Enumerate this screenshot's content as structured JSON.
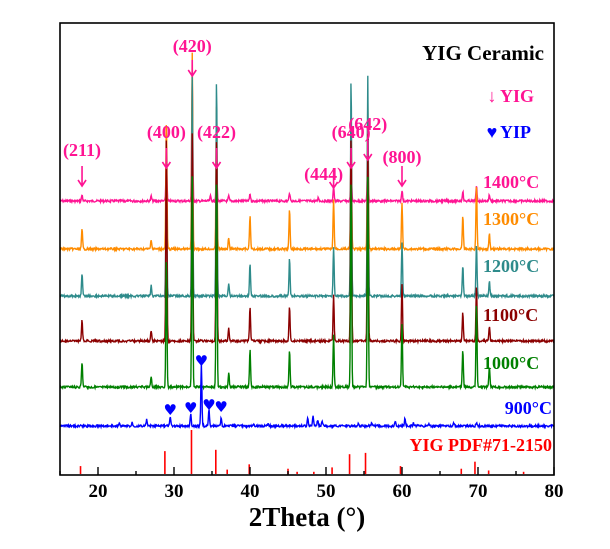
{
  "chart_data": {
    "type": "line",
    "title": "YIG Ceramic",
    "xlabel": "2Theta (°)",
    "ylabel": "",
    "xlim": [
      15,
      80
    ],
    "x_ticks": [
      "20",
      "30",
      "40",
      "50",
      "60",
      "70",
      "80"
    ],
    "x_tick_values": [
      20,
      30,
      40,
      50,
      60,
      70,
      80
    ],
    "grid": false,
    "legend_position": "top-right",
    "legend": [
      {
        "symbol": "↓",
        "label": "YIG",
        "color": "#ff1493"
      },
      {
        "symbol": "♥",
        "label": "YIP",
        "color": "#0000ff"
      }
    ],
    "peak_markers": [
      {
        "label": "(211)",
        "x": 17.9
      },
      {
        "label": "(400)",
        "x": 29.0
      },
      {
        "label": "(420)",
        "x": 32.4
      },
      {
        "label": "(422)",
        "x": 35.6
      },
      {
        "label": "(444)",
        "x": 51.0
      },
      {
        "label": "(640)",
        "x": 53.3
      },
      {
        "label": "(642)",
        "x": 55.5
      },
      {
        "label": "(800)",
        "x": 60.0
      }
    ],
    "yip_markers_x": [
      29.5,
      32.2,
      33.6,
      34.6,
      36.2
    ],
    "series": [
      {
        "name": "1400°C",
        "color": "#ff1493",
        "peaks": [
          [
            17.9,
            0.05
          ],
          [
            27.0,
            0.04
          ],
          [
            29.0,
            0.3
          ],
          [
            32.4,
            1.0
          ],
          [
            34.8,
            0.04
          ],
          [
            35.6,
            0.31
          ],
          [
            37.2,
            0.04
          ],
          [
            40.0,
            0.06
          ],
          [
            45.2,
            0.07
          ],
          [
            49.0,
            0.03
          ],
          [
            51.0,
            0.12
          ],
          [
            53.3,
            0.31
          ],
          [
            55.5,
            0.31
          ],
          [
            60.0,
            0.09
          ],
          [
            68.0,
            0.08
          ],
          [
            69.8,
            0.12
          ],
          [
            71.5,
            0.05
          ]
        ]
      },
      {
        "name": "1300°C",
        "color": "#ff8c00",
        "peaks": [
          [
            17.9,
            0.1
          ],
          [
            27.0,
            0.05
          ],
          [
            29.0,
            0.65
          ],
          [
            32.4,
            1.0
          ],
          [
            35.6,
            0.75
          ],
          [
            37.2,
            0.06
          ],
          [
            40.0,
            0.17
          ],
          [
            45.2,
            0.2
          ],
          [
            51.0,
            0.25
          ],
          [
            53.3,
            0.65
          ],
          [
            55.5,
            0.75
          ],
          [
            60.0,
            0.24
          ],
          [
            68.0,
            0.17
          ],
          [
            69.8,
            0.33
          ],
          [
            71.5,
            0.08
          ]
        ]
      },
      {
        "name": "1200°C",
        "color": "#2e8b8b",
        "peaks": [
          [
            17.9,
            0.1
          ],
          [
            27.0,
            0.05
          ],
          [
            29.0,
            0.55
          ],
          [
            32.4,
            1.0
          ],
          [
            35.6,
            1.0
          ],
          [
            37.2,
            0.06
          ],
          [
            40.0,
            0.15
          ],
          [
            45.2,
            0.17
          ],
          [
            51.0,
            0.22
          ],
          [
            53.3,
            1.0
          ],
          [
            55.5,
            1.0
          ],
          [
            60.0,
            0.24
          ],
          [
            68.0,
            0.14
          ],
          [
            69.8,
            0.24
          ],
          [
            71.5,
            0.07
          ]
        ]
      },
      {
        "name": "1100°C",
        "color": "#8b0000",
        "peaks": [
          [
            17.9,
            0.1
          ],
          [
            27.0,
            0.05
          ],
          [
            29.0,
            1.0
          ],
          [
            32.4,
            1.0
          ],
          [
            35.6,
            1.0
          ],
          [
            37.2,
            0.06
          ],
          [
            40.0,
            0.16
          ],
          [
            45.2,
            0.17
          ],
          [
            51.0,
            0.22
          ],
          [
            53.3,
            1.0
          ],
          [
            55.5,
            1.0
          ],
          [
            60.0,
            0.27
          ],
          [
            68.0,
            0.14
          ],
          [
            69.8,
            0.27
          ],
          [
            71.5,
            0.07
          ]
        ]
      },
      {
        "name": "1000°C",
        "color": "#008000",
        "peaks": [
          [
            17.9,
            0.12
          ],
          [
            27.0,
            0.05
          ],
          [
            29.0,
            0.62
          ],
          [
            32.4,
            1.0
          ],
          [
            35.6,
            1.0
          ],
          [
            37.2,
            0.07
          ],
          [
            40.0,
            0.18
          ],
          [
            45.2,
            0.18
          ],
          [
            51.0,
            0.25
          ],
          [
            53.3,
            1.0
          ],
          [
            55.5,
            1.0
          ],
          [
            60.0,
            0.3
          ],
          [
            68.0,
            0.18
          ],
          [
            69.8,
            0.4
          ],
          [
            71.5,
            0.1
          ]
        ]
      },
      {
        "name": "900°C",
        "color": "#0000ff",
        "peaks": [
          [
            22.8,
            0.04
          ],
          [
            24.5,
            0.06
          ],
          [
            26.4,
            0.1
          ],
          [
            29.5,
            0.15
          ],
          [
            32.2,
            0.2
          ],
          [
            33.6,
            1.0
          ],
          [
            34.6,
            0.28
          ],
          [
            36.2,
            0.12
          ],
          [
            40.5,
            0.04
          ],
          [
            42.4,
            0.04
          ],
          [
            47.6,
            0.14
          ],
          [
            48.3,
            0.17
          ],
          [
            48.9,
            0.1
          ],
          [
            49.5,
            0.08
          ],
          [
            54.3,
            0.04
          ],
          [
            56.0,
            0.05
          ],
          [
            59.1,
            0.08
          ],
          [
            60.4,
            0.13
          ],
          [
            61.5,
            0.05
          ],
          [
            63.5,
            0.04
          ],
          [
            66.8,
            0.05
          ],
          [
            69.8,
            0.06
          ]
        ]
      }
    ],
    "reference": {
      "name": "YIG PDF#71-2150",
      "color": "#ff0000",
      "sticks": [
        [
          17.7,
          0.18
        ],
        [
          28.8,
          0.52
        ],
        [
          32.3,
          1.0
        ],
        [
          35.5,
          0.55
        ],
        [
          37.0,
          0.1
        ],
        [
          39.9,
          0.22
        ],
        [
          45.0,
          0.12
        ],
        [
          46.2,
          0.05
        ],
        [
          48.4,
          0.05
        ],
        [
          50.8,
          0.15
        ],
        [
          53.1,
          0.45
        ],
        [
          55.2,
          0.48
        ],
        [
          59.8,
          0.18
        ],
        [
          67.8,
          0.12
        ],
        [
          69.6,
          0.28
        ],
        [
          71.4,
          0.08
        ],
        [
          76.0,
          0.05
        ]
      ]
    }
  }
}
